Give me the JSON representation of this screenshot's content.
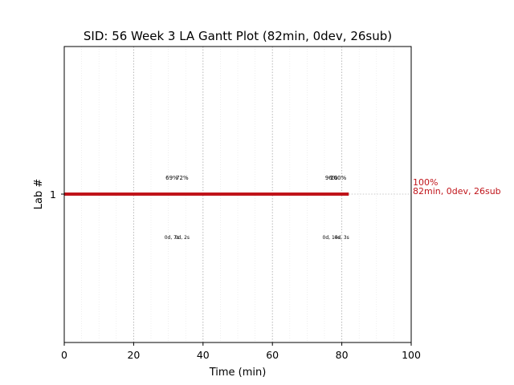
{
  "chart_data": {
    "type": "gantt",
    "title": "SID: 56 Week 3 LA Gantt Plot (82min, 0dev, 26sub)",
    "xlabel": "Time (min)",
    "ylabel": "Lab #",
    "xlim": [
      0,
      100
    ],
    "xticks": [
      "0",
      "20",
      "40",
      "60",
      "80",
      "100"
    ],
    "grid": true,
    "bars": [
      {
        "lab": "1",
        "start": 0,
        "end": 82,
        "color": "#c0141a"
      }
    ],
    "percent_labels": [
      {
        "x": 31,
        "text": "69%"
      },
      {
        "x": 34,
        "text": "72%"
      },
      {
        "x": 77,
        "text": "96%"
      },
      {
        "x": 79,
        "text": "100%"
      }
    ],
    "status_labels": [
      {
        "x": 31,
        "text": "0d, 7s"
      },
      {
        "x": 34,
        "text": "0d, 2s"
      },
      {
        "x": 77,
        "text": "0d, 14s"
      },
      {
        "x": 80,
        "text": "0d, 3s"
      }
    ],
    "end_annotation": {
      "line1": "100%",
      "line2": "82min, 0dev, 26sub"
    }
  }
}
